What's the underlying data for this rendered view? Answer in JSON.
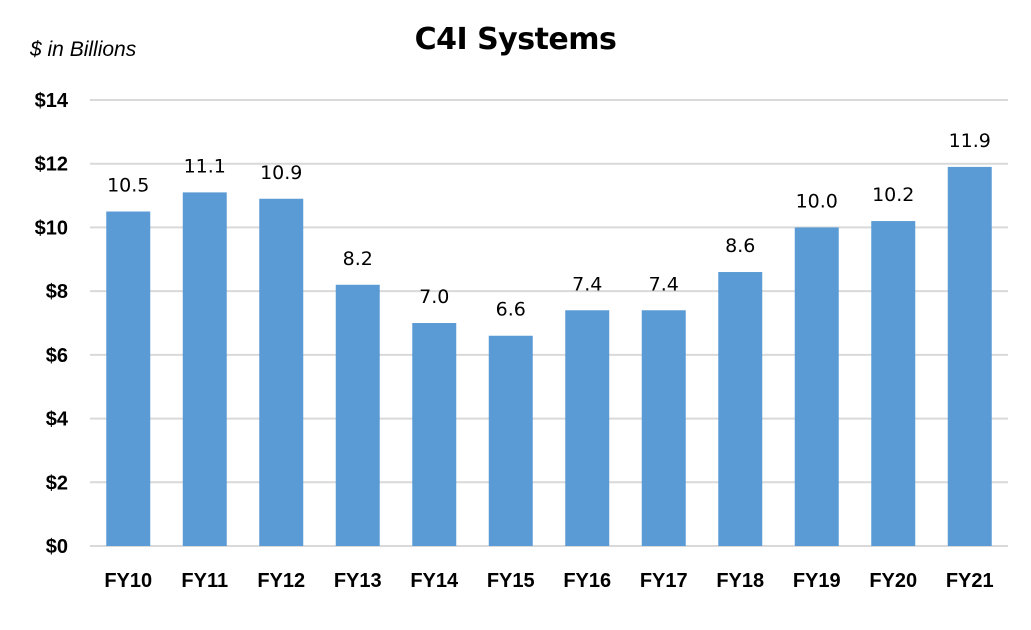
{
  "chart_data": {
    "type": "bar",
    "title": "C4I Systems",
    "unit_label": "$ in Billions",
    "xlabel": "",
    "ylabel": "",
    "categories": [
      "FY10",
      "FY11",
      "FY12",
      "FY13",
      "FY14",
      "FY15",
      "FY16",
      "FY17",
      "FY18",
      "FY19",
      "FY20",
      "FY21"
    ],
    "values": [
      10.5,
      11.1,
      10.9,
      8.2,
      7.0,
      6.6,
      7.4,
      7.4,
      8.6,
      10.0,
      10.2,
      11.9
    ],
    "data_labels": [
      "10.5",
      "11.1",
      "10.9",
      "8.2",
      "7.0",
      "6.6",
      "7.4",
      "7.4",
      "8.6",
      "10.0",
      "10.2",
      "11.9"
    ],
    "y_ticks": [
      0,
      2,
      4,
      6,
      8,
      10,
      12,
      14
    ],
    "y_tick_labels": [
      "$0",
      "$2",
      "$4",
      "$6",
      "$8",
      "$10",
      "$12",
      "$14"
    ],
    "ylim": [
      0,
      14
    ],
    "grid": true,
    "legend": "none",
    "colors": {
      "bar": "#5b9bd5",
      "grid": "#d9d9d9"
    }
  }
}
